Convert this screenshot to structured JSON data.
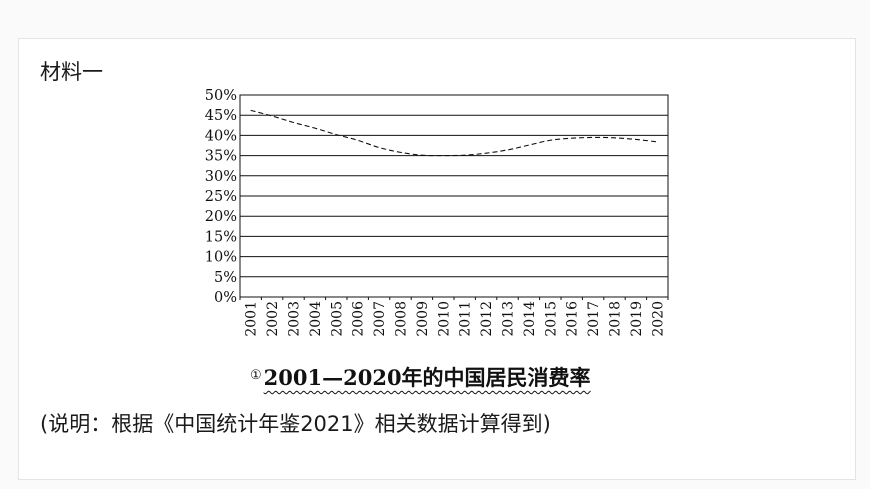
{
  "material_label": "材料一",
  "caption": {
    "marker": "①",
    "text": "2001—2020年的中国居民消费率"
  },
  "note": "(说明：根据《中国统计年鉴2021》相关数据计算得到)",
  "chart_data": {
    "type": "line",
    "title": "2001—2020年的中国居民消费率",
    "xlabel": "",
    "ylabel": "",
    "ylim": [
      0,
      50
    ],
    "grid": true,
    "y_ticks": [
      "0%",
      "5%",
      "10%",
      "15%",
      "20%",
      "25%",
      "30%",
      "35%",
      "40%",
      "45%",
      "50%"
    ],
    "categories": [
      "2001",
      "2002",
      "2003",
      "2004",
      "2005",
      "2006",
      "2007",
      "2008",
      "2009",
      "2010",
      "2011",
      "2012",
      "2013",
      "2014",
      "2015",
      "2016",
      "2017",
      "2018",
      "2019",
      "2020"
    ],
    "series": [
      {
        "name": "",
        "line_style": "dashed",
        "values": [
          46.2,
          44.8,
          43.2,
          41.8,
          40.2,
          38.8,
          37.0,
          35.8,
          35.1,
          35.0,
          35.1,
          35.6,
          36.4,
          37.6,
          38.8,
          39.3,
          39.5,
          39.4,
          39.0,
          38.4
        ]
      }
    ]
  }
}
